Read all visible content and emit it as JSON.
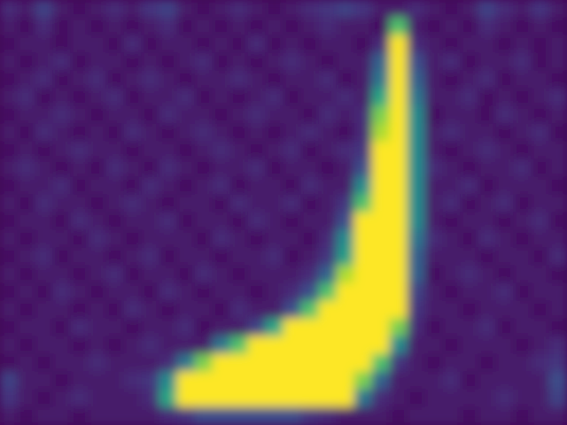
{
  "chart_data": {
    "type": "heatmap",
    "tick_labels": false,
    "zlim": [
      0,
      25
    ],
    "cells": [
      [
        3,
        2,
        5,
        2,
        1,
        2,
        3,
        2,
        4,
        5,
        2,
        1,
        2,
        3,
        2,
        1,
        2,
        3,
        4,
        5,
        4,
        2,
        2,
        3,
        2,
        1,
        2,
        5,
        3,
        2,
        4,
        2
      ],
      [
        2,
        1,
        3,
        1,
        2,
        1,
        2,
        1,
        2,
        3,
        1,
        2,
        1,
        2,
        1,
        2,
        1,
        2,
        3,
        2,
        2,
        1,
        18,
        2,
        1,
        2,
        1,
        3,
        2,
        1,
        2,
        1
      ],
      [
        1,
        2,
        2,
        1,
        2,
        2,
        1,
        3,
        1,
        2,
        2,
        1,
        2,
        1,
        3,
        1,
        2,
        1,
        2,
        2,
        1,
        3,
        25,
        3,
        2,
        1,
        2,
        2,
        1,
        2,
        1,
        2
      ],
      [
        2,
        1,
        2,
        3,
        1,
        2,
        2,
        1,
        2,
        1,
        2,
        3,
        1,
        2,
        1,
        2,
        3,
        2,
        1,
        2,
        2,
        8,
        25,
        6,
        2,
        3,
        1,
        2,
        2,
        3,
        1,
        2
      ],
      [
        1,
        2,
        3,
        1,
        2,
        3,
        1,
        2,
        3,
        2,
        1,
        2,
        2,
        3,
        2,
        1,
        2,
        2,
        3,
        1,
        2,
        10,
        25,
        8,
        2,
        1,
        2,
        3,
        1,
        2,
        2,
        1
      ],
      [
        2,
        3,
        1,
        2,
        1,
        2,
        3,
        1,
        2,
        2,
        3,
        1,
        2,
        1,
        2,
        3,
        1,
        2,
        2,
        3,
        2,
        15,
        25,
        10,
        2,
        2,
        3,
        1,
        2,
        1,
        2,
        3
      ],
      [
        1,
        2,
        2,
        3,
        2,
        1,
        2,
        2,
        1,
        3,
        2,
        2,
        1,
        2,
        3,
        2,
        2,
        1,
        3,
        2,
        3,
        20,
        25,
        12,
        1,
        2,
        2,
        1,
        3,
        2,
        1,
        2
      ],
      [
        2,
        1,
        3,
        2,
        1,
        2,
        1,
        3,
        2,
        1,
        2,
        3,
        2,
        1,
        2,
        1,
        2,
        3,
        2,
        1,
        3,
        22,
        25,
        12,
        2,
        3,
        2,
        2,
        1,
        2,
        3,
        1
      ],
      [
        1,
        2,
        1,
        2,
        3,
        2,
        2,
        1,
        2,
        2,
        1,
        2,
        3,
        2,
        1,
        2,
        3,
        1,
        2,
        3,
        4,
        25,
        25,
        12,
        2,
        1,
        2,
        3,
        2,
        1,
        2,
        2
      ],
      [
        2,
        3,
        2,
        1,
        2,
        1,
        3,
        2,
        1,
        3,
        2,
        1,
        2,
        2,
        3,
        1,
        2,
        2,
        1,
        2,
        6,
        25,
        25,
        12,
        3,
        2,
        1,
        2,
        2,
        3,
        1,
        2
      ],
      [
        1,
        2,
        2,
        3,
        1,
        2,
        2,
        1,
        3,
        2,
        1,
        2,
        3,
        1,
        2,
        2,
        1,
        3,
        2,
        2,
        12,
        25,
        25,
        12,
        2,
        2,
        3,
        1,
        2,
        2,
        2,
        1
      ],
      [
        2,
        1,
        3,
        2,
        2,
        1,
        2,
        3,
        2,
        1,
        2,
        2,
        1,
        3,
        2,
        2,
        3,
        1,
        2,
        4,
        18,
        25,
        25,
        12,
        2,
        3,
        1,
        2,
        3,
        1,
        2,
        2
      ],
      [
        1,
        2,
        2,
        1,
        3,
        2,
        1,
        2,
        2,
        3,
        1,
        2,
        2,
        1,
        3,
        2,
        1,
        2,
        2,
        6,
        25,
        25,
        25,
        12,
        2,
        1,
        2,
        2,
        1,
        2,
        3,
        1
      ],
      [
        2,
        1,
        2,
        2,
        1,
        3,
        2,
        1,
        2,
        2,
        2,
        1,
        3,
        2,
        1,
        2,
        2,
        1,
        3,
        12,
        25,
        25,
        25,
        10,
        3,
        2,
        1,
        3,
        2,
        1,
        2,
        2
      ],
      [
        1,
        2,
        3,
        1,
        2,
        2,
        1,
        2,
        3,
        1,
        2,
        2,
        1,
        2,
        2,
        3,
        1,
        2,
        4,
        14,
        25,
        25,
        25,
        8,
        2,
        2,
        2,
        1,
        2,
        2,
        1,
        3
      ],
      [
        2,
        1,
        2,
        2,
        1,
        2,
        3,
        1,
        2,
        2,
        1,
        3,
        2,
        1,
        2,
        2,
        2,
        3,
        8,
        22,
        25,
        25,
        25,
        8,
        1,
        2,
        3,
        2,
        1,
        2,
        2,
        1
      ],
      [
        1,
        2,
        1,
        3,
        2,
        1,
        2,
        2,
        1,
        3,
        2,
        1,
        2,
        2,
        1,
        2,
        3,
        6,
        18,
        25,
        25,
        25,
        25,
        5,
        2,
        1,
        2,
        2,
        3,
        1,
        2,
        2
      ],
      [
        2,
        1,
        2,
        2,
        1,
        2,
        1,
        3,
        2,
        1,
        2,
        2,
        1,
        3,
        2,
        2,
        6,
        18,
        25,
        25,
        25,
        25,
        25,
        4,
        2,
        2,
        1,
        2,
        2,
        2,
        1,
        2
      ],
      [
        1,
        2,
        2,
        1,
        3,
        2,
        2,
        1,
        2,
        2,
        3,
        1,
        2,
        2,
        5,
        15,
        25,
        25,
        25,
        25,
        25,
        25,
        20,
        3,
        1,
        2,
        2,
        3,
        1,
        2,
        2,
        1
      ],
      [
        2,
        1,
        2,
        2,
        1,
        2,
        1,
        2,
        3,
        2,
        2,
        2,
        10,
        18,
        25,
        25,
        25,
        25,
        25,
        25,
        25,
        25,
        12,
        2,
        2,
        1,
        2,
        2,
        2,
        1,
        2,
        3
      ],
      [
        1,
        2,
        1,
        2,
        2,
        3,
        2,
        2,
        2,
        3,
        10,
        20,
        25,
        25,
        25,
        25,
        25,
        25,
        25,
        25,
        25,
        18,
        4,
        2,
        1,
        2,
        2,
        1,
        2,
        2,
        3,
        4
      ],
      [
        5,
        2,
        2,
        1,
        2,
        2,
        2,
        3,
        4,
        12,
        25,
        25,
        25,
        25,
        25,
        25,
        25,
        25,
        25,
        25,
        20,
        8,
        2,
        2,
        2,
        3,
        1,
        2,
        2,
        2,
        2,
        6
      ],
      [
        4,
        2,
        1,
        2,
        3,
        2,
        2,
        2,
        3,
        15,
        25,
        25,
        25,
        25,
        25,
        25,
        25,
        25,
        25,
        25,
        10,
        3,
        2,
        1,
        2,
        2,
        2,
        2,
        3,
        2,
        2,
        5
      ],
      [
        2,
        1,
        2,
        2,
        1,
        2,
        2,
        2,
        2,
        3,
        4,
        6,
        6,
        6,
        6,
        6,
        6,
        4,
        3,
        2,
        2,
        2,
        1,
        2,
        2,
        2,
        1,
        2,
        2,
        1,
        2,
        2
      ]
    ]
  }
}
